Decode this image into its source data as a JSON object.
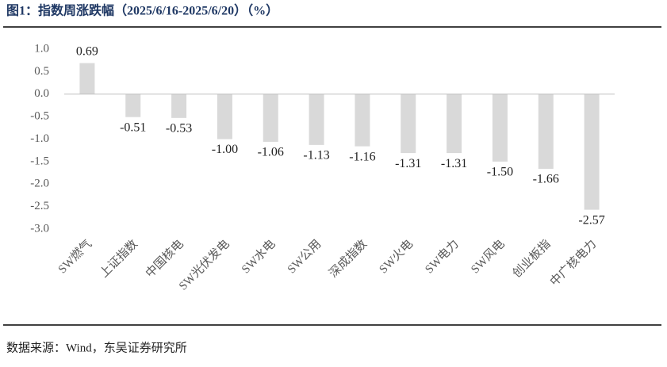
{
  "chart_data": {
    "type": "bar",
    "title": "图1：指数周涨跌幅（2025/6/16-2025/6/20）（%）",
    "source": "数据来源：Wind，东吴证券研究所",
    "categories": [
      "SW燃气",
      "上证指数",
      "中国核电",
      "SW光伏发电",
      "SW水电",
      "SW公用",
      "深成指数",
      "SW火电",
      "SW电力",
      "SW风电",
      "创业板指",
      "中广核电力"
    ],
    "values": [
      0.69,
      -0.51,
      -0.53,
      -1.0,
      -1.06,
      -1.13,
      -1.16,
      -1.31,
      -1.31,
      -1.5,
      -1.66,
      -2.57
    ],
    "value_labels": [
      "0.69",
      "-0.51",
      "-0.53",
      "-1.00",
      "-1.06",
      "-1.13",
      "-1.16",
      "-1.31",
      "-1.31",
      "-1.50",
      "-1.66",
      "-2.57"
    ],
    "color": "#d9d9d9",
    "ylim": [
      -3,
      1
    ],
    "yticks": [
      {
        "value": 1,
        "label": "1.0"
      },
      {
        "value": 0.5,
        "label": "0.5"
      },
      {
        "value": 0,
        "label": "0.0"
      },
      {
        "value": -0.5,
        "label": "-0.5"
      },
      {
        "value": -1,
        "label": "-1.0"
      },
      {
        "value": -1.5,
        "label": "-1.5"
      },
      {
        "value": -2,
        "label": "-2.0"
      },
      {
        "value": -2.5,
        "label": "-2.5"
      },
      {
        "value": -3,
        "label": "-3.0"
      }
    ],
    "grid": false
  }
}
